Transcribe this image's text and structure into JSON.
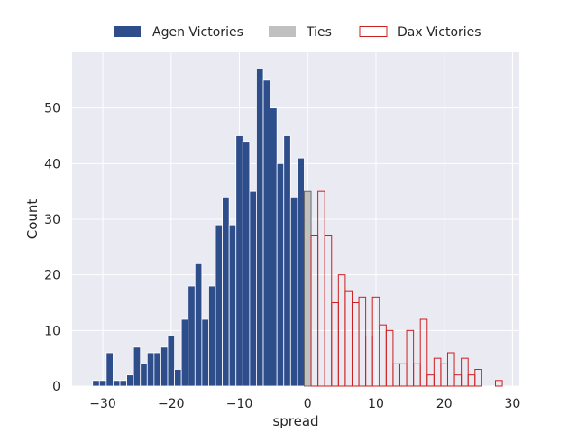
{
  "chart_data": {
    "type": "bar",
    "title": "",
    "xlabel": "spread",
    "ylabel": "Count",
    "xlim": [
      -34.5,
      31
    ],
    "ylim": [
      0,
      60
    ],
    "xticks": [
      -30,
      -20,
      -10,
      0,
      10,
      20,
      30
    ],
    "xtick_labels": [
      "−30",
      "−20",
      "−10",
      "0",
      "10",
      "20",
      "30"
    ],
    "yticks": [
      0,
      10,
      20,
      30,
      40,
      50
    ],
    "ytick_labels": [
      "0",
      "10",
      "20",
      "30",
      "40",
      "50"
    ],
    "bin_width": 1,
    "grid": true,
    "legend_position": "top-center",
    "colors": {
      "agen": "#2e4d8b",
      "ties": "#c0c0c0",
      "dax_edge": "#cc1f1f",
      "panel": "#eaeaf2",
      "grid": "#ffffff"
    },
    "series": [
      {
        "name": "Agen Victories",
        "style": "filled",
        "x": [
          -31,
          -30,
          -29,
          -28,
          -27,
          -26,
          -25,
          -24,
          -23,
          -22,
          -21,
          -20,
          -19,
          -18,
          -17,
          -16,
          -15,
          -14,
          -13,
          -12,
          -11,
          -10,
          -9,
          -8,
          -7,
          -6,
          -5,
          -4,
          -3,
          -2,
          -1
        ],
        "values": [
          1,
          1,
          6,
          1,
          1,
          2,
          7,
          4,
          6,
          6,
          7,
          9,
          3,
          12,
          18,
          22,
          12,
          18,
          29,
          34,
          29,
          45,
          44,
          35,
          57,
          55,
          50,
          40,
          45,
          34,
          41
        ]
      },
      {
        "name": "Ties",
        "style": "filled",
        "x": [
          0
        ],
        "values": [
          35
        ]
      },
      {
        "name": "Dax Victories",
        "style": "outline",
        "x": [
          1,
          2,
          3,
          4,
          5,
          6,
          7,
          8,
          9,
          10,
          11,
          12,
          13,
          14,
          15,
          16,
          17,
          18,
          19,
          20,
          21,
          22,
          23,
          24,
          25,
          26,
          27,
          28
        ],
        "values": [
          27,
          35,
          27,
          15,
          20,
          17,
          15,
          16,
          9,
          16,
          11,
          10,
          4,
          4,
          10,
          4,
          12,
          2,
          5,
          4,
          6,
          2,
          5,
          2,
          3,
          0,
          0,
          1
        ]
      }
    ]
  }
}
